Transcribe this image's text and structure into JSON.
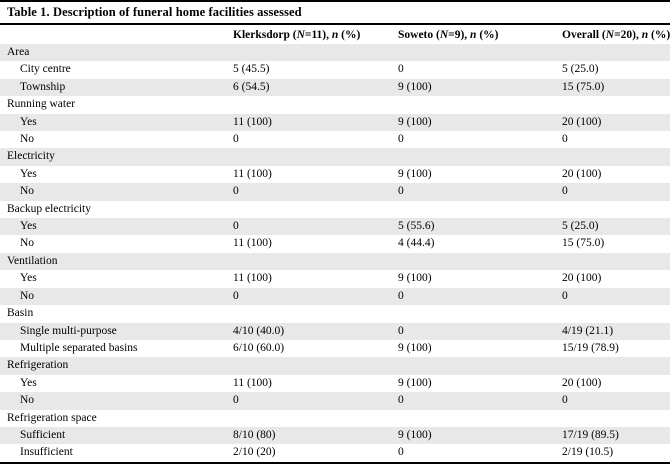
{
  "table": {
    "title": "Table 1. Description of funeral home facilities assessed",
    "columns": [
      {
        "label": ""
      },
      {
        "label": "Klerksdorp (N=11), n (%)"
      },
      {
        "label": "Soweto (N=9), n (%)"
      },
      {
        "label": "Overall (N=20), n (%)"
      }
    ],
    "rows": [
      {
        "label": "Area",
        "indent": false,
        "values": [
          "",
          "",
          ""
        ]
      },
      {
        "label": "City centre",
        "indent": true,
        "values": [
          "5 (45.5)",
          "0",
          "5 (25.0)"
        ]
      },
      {
        "label": "Township",
        "indent": true,
        "values": [
          "6 (54.5)",
          "9 (100)",
          "15 (75.0)"
        ]
      },
      {
        "label": "Running water",
        "indent": false,
        "values": [
          "",
          "",
          ""
        ]
      },
      {
        "label": "Yes",
        "indent": true,
        "values": [
          "11 (100)",
          "9 (100)",
          "20 (100)"
        ]
      },
      {
        "label": "No",
        "indent": true,
        "values": [
          "0",
          "0",
          "0"
        ]
      },
      {
        "label": "Electricity",
        "indent": false,
        "values": [
          "",
          "",
          ""
        ]
      },
      {
        "label": "Yes",
        "indent": true,
        "values": [
          "11 (100)",
          "9 (100)",
          "20 (100)"
        ]
      },
      {
        "label": "No",
        "indent": true,
        "values": [
          "0",
          "0",
          "0"
        ]
      },
      {
        "label": "Backup electricity",
        "indent": false,
        "values": [
          "",
          "",
          ""
        ]
      },
      {
        "label": "Yes",
        "indent": true,
        "values": [
          "0",
          "5 (55.6)",
          "5 (25.0)"
        ]
      },
      {
        "label": "No",
        "indent": true,
        "values": [
          "11 (100)",
          "4 (44.4)",
          "15 (75.0)"
        ]
      },
      {
        "label": "Ventilation",
        "indent": false,
        "values": [
          "",
          "",
          ""
        ]
      },
      {
        "label": "Yes",
        "indent": true,
        "values": [
          "11 (100)",
          "9 (100)",
          "20 (100)"
        ]
      },
      {
        "label": "No",
        "indent": true,
        "values": [
          "0",
          "0",
          "0"
        ]
      },
      {
        "label": "Basin",
        "indent": false,
        "values": [
          "",
          "",
          ""
        ]
      },
      {
        "label": "Single multi-purpose",
        "indent": true,
        "values": [
          "4/10 (40.0)",
          "0",
          "4/19 (21.1)"
        ]
      },
      {
        "label": "Multiple separated basins",
        "indent": true,
        "values": [
          "6/10 (60.0)",
          "9 (100)",
          "15/19 (78.9)"
        ]
      },
      {
        "label": "Refrigeration",
        "indent": false,
        "values": [
          "",
          "",
          ""
        ]
      },
      {
        "label": "Yes",
        "indent": true,
        "values": [
          "11 (100)",
          "9 (100)",
          "20 (100)"
        ]
      },
      {
        "label": "No",
        "indent": true,
        "values": [
          "0",
          "0",
          "0"
        ]
      },
      {
        "label": "Refrigeration space",
        "indent": false,
        "values": [
          "",
          "",
          ""
        ]
      },
      {
        "label": "Sufficient",
        "indent": true,
        "values": [
          "8/10 (80)",
          "9 (100)",
          "17/19 (89.5)"
        ]
      },
      {
        "label": "Insufficient",
        "indent": true,
        "values": [
          "2/10 (20)",
          "0",
          "2/19 (10.5)"
        ]
      }
    ]
  }
}
